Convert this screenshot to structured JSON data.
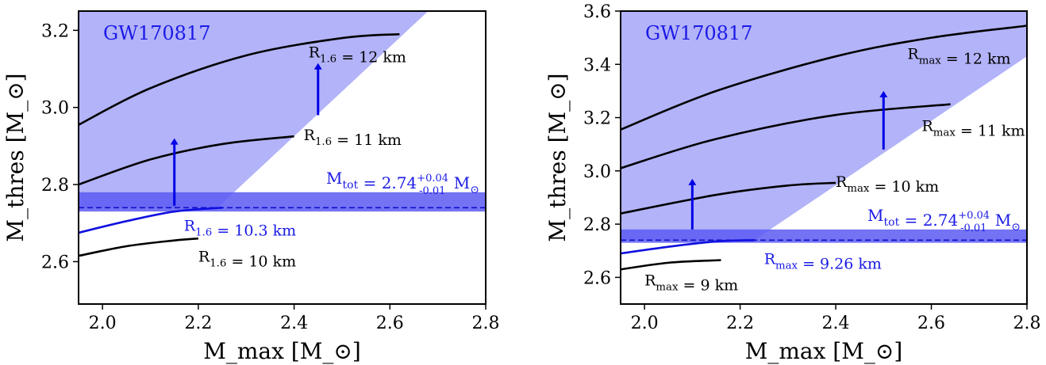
{
  "chart_data": [
    {
      "type": "line",
      "xlabel": "M_max [M_⊙]",
      "ylabel": "M_thres [M_⊙]",
      "xlim": [
        1.95,
        2.8
      ],
      "ylim": [
        2.49,
        3.25
      ],
      "xticks": [
        "2.0",
        "2.2",
        "2.4",
        "2.6",
        "2.8"
      ],
      "xtick_values": [
        2.0,
        2.2,
        2.4,
        2.6,
        2.8
      ],
      "yticks": [
        "2.6",
        "2.8",
        "3.0",
        "3.2"
      ],
      "ytick_values": [
        2.6,
        2.8,
        3.0,
        3.2
      ],
      "annotation": "GW170817",
      "shaded_region": {
        "color": "#b3b3fa",
        "polygon": [
          [
            1.95,
            2.74
          ],
          [
            2.24,
            2.74
          ],
          [
            2.68,
            3.25
          ],
          [
            1.95,
            3.25
          ]
        ]
      },
      "mtot_band": {
        "center": 2.74,
        "lower": 2.73,
        "upper": 2.78,
        "color": "#5a5af2",
        "label": "M_tot = 2.74^{+0.04}_{-0.01} M_⊙"
      },
      "series": [
        {
          "name": "R_1.6 = 12 km",
          "color": "#000000",
          "x": [
            1.95,
            2.1,
            2.3,
            2.5,
            2.62
          ],
          "y": [
            2.955,
            3.05,
            3.135,
            3.18,
            3.19
          ],
          "label_at": [
            2.43,
            3.13
          ]
        },
        {
          "name": "R_1.6 = 11 km",
          "color": "#000000",
          "x": [
            1.95,
            2.1,
            2.25,
            2.4
          ],
          "y": [
            2.8,
            2.865,
            2.905,
            2.925
          ],
          "label_at": [
            2.42,
            2.915
          ]
        },
        {
          "name": "R_1.6 = 10.3 km",
          "color": "#1010e0",
          "x": [
            1.95,
            2.05,
            2.15,
            2.25
          ],
          "y": [
            2.675,
            2.705,
            2.73,
            2.74
          ],
          "label_at": [
            2.17,
            2.68
          ]
        },
        {
          "name": "R_1.6 = 10 km",
          "color": "#000000",
          "x": [
            1.95,
            2.05,
            2.15,
            2.2
          ],
          "y": [
            2.615,
            2.64,
            2.655,
            2.66
          ],
          "label_at": [
            2.2,
            2.6
          ]
        }
      ],
      "arrows": [
        {
          "x": 2.15,
          "y_from": 2.745,
          "y_to": 2.92
        },
        {
          "x": 2.45,
          "y_from": 2.98,
          "y_to": 3.115
        }
      ]
    },
    {
      "type": "line",
      "xlabel": "M_max [M_⊙]",
      "ylabel": "M_thres [M_⊙]",
      "xlim": [
        1.95,
        2.8
      ],
      "ylim": [
        2.5,
        3.6
      ],
      "xticks": [
        "2.0",
        "2.2",
        "2.4",
        "2.6",
        "2.8"
      ],
      "xtick_values": [
        2.0,
        2.2,
        2.4,
        2.6,
        2.8
      ],
      "yticks": [
        "2.6",
        "2.8",
        "3.0",
        "3.2",
        "3.4",
        "3.6"
      ],
      "ytick_values": [
        2.6,
        2.8,
        3.0,
        3.2,
        3.4,
        3.6
      ],
      "annotation": "GW170817",
      "shaded_region": {
        "color": "#b3b3fa",
        "polygon": [
          [
            1.95,
            2.74
          ],
          [
            2.23,
            2.74
          ],
          [
            2.8,
            3.43
          ],
          [
            2.8,
            3.6
          ],
          [
            1.95,
            3.6
          ]
        ]
      },
      "mtot_band": {
        "center": 2.74,
        "lower": 2.73,
        "upper": 2.78,
        "color": "#5a5af2",
        "label": "M_tot = 2.74^{+0.04}_{-0.01} M_⊙"
      },
      "series": [
        {
          "name": "R_max = 12 km",
          "color": "#000000",
          "x": [
            1.95,
            2.15,
            2.4,
            2.6,
            2.8
          ],
          "y": [
            3.155,
            3.3,
            3.43,
            3.5,
            3.545
          ],
          "label_at": [
            2.55,
            3.42
          ]
        },
        {
          "name": "R_max = 11 km",
          "color": "#000000",
          "x": [
            1.95,
            2.15,
            2.4,
            2.64
          ],
          "y": [
            3.01,
            3.12,
            3.21,
            3.25
          ],
          "label_at": [
            2.58,
            3.15
          ]
        },
        {
          "name": "R_max = 10 km",
          "color": "#000000",
          "x": [
            1.95,
            2.15,
            2.3,
            2.4
          ],
          "y": [
            2.84,
            2.91,
            2.945,
            2.955
          ],
          "label_at": [
            2.4,
            2.94
          ]
        },
        {
          "name": "R_max = 9.26 km",
          "color": "#1010e0",
          "x": [
            1.95,
            2.05,
            2.15,
            2.23
          ],
          "y": [
            2.69,
            2.715,
            2.735,
            2.74
          ],
          "label_at": [
            2.25,
            2.65
          ]
        },
        {
          "name": "R_max = 9 km",
          "color": "#000000",
          "x": [
            1.95,
            2.05,
            2.16
          ],
          "y": [
            2.63,
            2.655,
            2.665
          ],
          "label_at": [
            2.0,
            2.57
          ]
        }
      ],
      "arrows": [
        {
          "x": 2.1,
          "y_from": 2.78,
          "y_to": 2.97
        },
        {
          "x": 2.5,
          "y_from": 3.08,
          "y_to": 3.3
        }
      ]
    }
  ]
}
